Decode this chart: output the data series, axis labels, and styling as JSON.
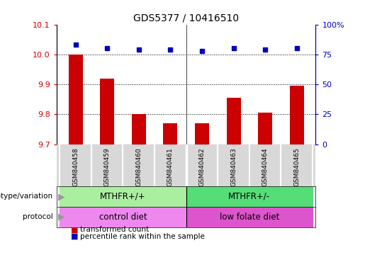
{
  "title": "GDS5377 / 10416510",
  "samples": [
    "GSM840458",
    "GSM840459",
    "GSM840460",
    "GSM840461",
    "GSM840462",
    "GSM840463",
    "GSM840464",
    "GSM840465"
  ],
  "red_values": [
    10.0,
    9.92,
    9.8,
    9.77,
    9.77,
    9.855,
    9.805,
    9.895
  ],
  "blue_values": [
    83,
    80,
    79,
    79,
    78,
    80,
    79,
    80
  ],
  "ylim_left": [
    9.7,
    10.1
  ],
  "ylim_right": [
    0,
    100
  ],
  "yticks_left": [
    9.7,
    9.8,
    9.9,
    10.0,
    10.1
  ],
  "yticks_right": [
    0,
    25,
    50,
    75,
    100
  ],
  "ytick_labels_right": [
    "0",
    "25",
    "50",
    "75",
    "100%"
  ],
  "grid_lines": [
    9.8,
    9.9,
    10.0
  ],
  "bar_color": "#cc0000",
  "dot_color": "#0000bb",
  "bar_width": 0.45,
  "genotype_labels": [
    {
      "text": "MTHFR+/+",
      "start": 0,
      "end": 3
    },
    {
      "text": "MTHFR+/-",
      "start": 4,
      "end": 7
    }
  ],
  "protocol_labels": [
    {
      "text": "control diet",
      "start": 0,
      "end": 3
    },
    {
      "text": "low folate diet",
      "start": 4,
      "end": 7
    }
  ],
  "genotype_colors": [
    "#aaeea0",
    "#55dd77"
  ],
  "protocol_colors": [
    "#ee88ee",
    "#dd55cc"
  ],
  "legend_red": "transformed count",
  "legend_blue": "percentile rank within the sample",
  "tick_label_color_left": "#cc0000",
  "tick_label_color_right": "#0000bb",
  "xtick_bg_color": "#d8d8d8",
  "arrow_color": "#999999",
  "label_text_color": "#000000",
  "divider_x": 3.5,
  "xlim": [
    -0.6,
    7.6
  ],
  "n_samples": 8
}
